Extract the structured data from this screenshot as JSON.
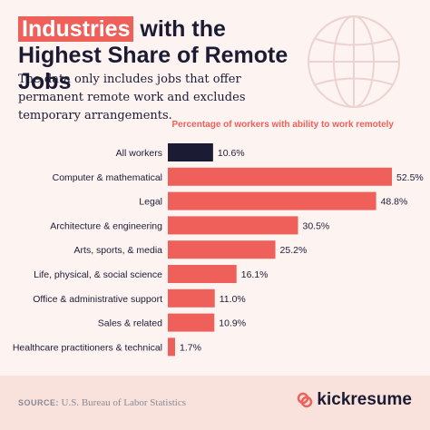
{
  "header": {
    "title_highlight": "Industries",
    "title_rest": " with the Highest Share of Remote Jobs",
    "subtitle": "The data only includes jobs that offer permanent remote work and excludes temporary arrangements."
  },
  "chart_data": {
    "type": "bar",
    "orientation": "horizontal",
    "title": "Industries with the Highest Share of Remote Jobs",
    "xlabel": "Percentage of workers with ability to work remotely",
    "categories": [
      "All workers",
      "Computer & mathematical",
      "Legal",
      "Architecture & engineering",
      "Arts, sports, & media",
      "Life, physical, & social science",
      "Office & administrative support",
      "Sales & related",
      "Healthcare practitioners & technical"
    ],
    "values": [
      10.6,
      52.5,
      48.8,
      30.5,
      25.2,
      16.1,
      11.0,
      10.9,
      1.7
    ],
    "labels": [
      "10.6%",
      "52.5%",
      "48.8%",
      "30.5%",
      "25.2%",
      "16.1%",
      "11.0%",
      "10.9%",
      "1.7%"
    ],
    "xlim": [
      0,
      52.5
    ],
    "grid": false,
    "legend": "none",
    "colors": {
      "highlight": "#1b1b33",
      "bar": "#f0605a"
    }
  },
  "footer": {
    "source_label": "SOURCE:",
    "source_text": "U.S. Bureau of Labor Statistics",
    "brand": "kickresume"
  }
}
